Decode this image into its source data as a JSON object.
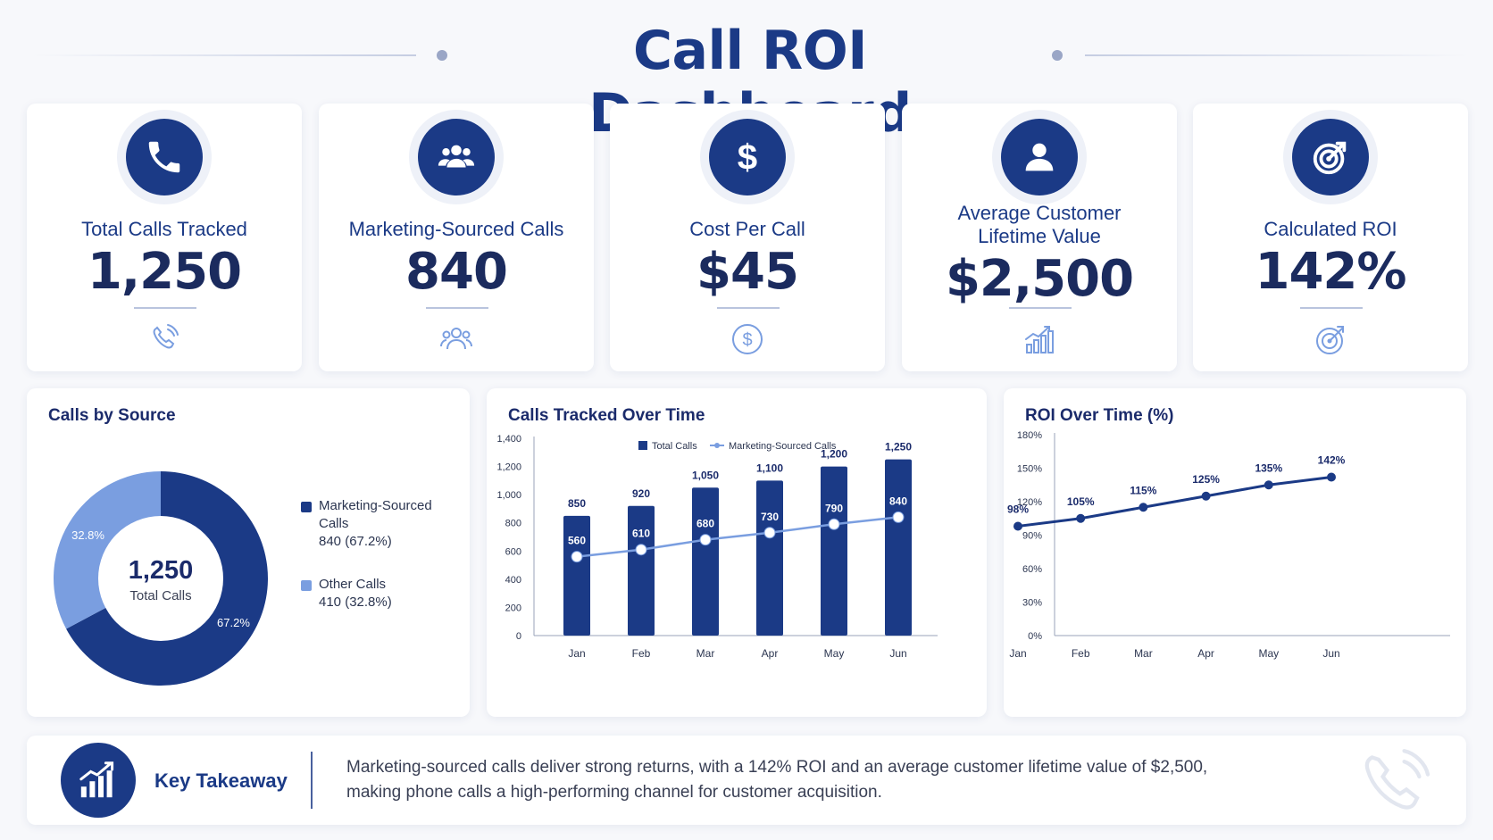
{
  "title": "Call ROI Dashboard",
  "kpis": [
    {
      "label": "Total Calls Tracked",
      "value": "1,250",
      "icon": "phone-icon"
    },
    {
      "label": "Marketing-Sourced Calls",
      "value": "840",
      "icon": "users-icon"
    },
    {
      "label": "Cost Per Call",
      "value": "$45",
      "icon": "dollar-icon"
    },
    {
      "label_line1": "Average Customer",
      "label_line2": "Lifetime Value",
      "value": "$2,500",
      "icon": "user-icon"
    },
    {
      "label": "Calculated ROI",
      "value": "142%",
      "icon": "target-icon"
    }
  ],
  "panels": {
    "source": {
      "title": "Calls by Source"
    },
    "tracked": {
      "title": "Calls Tracked Over Time"
    },
    "roi": {
      "title": "ROI Over Time (%)"
    }
  },
  "colors": {
    "navy": "#1b3a86",
    "light_blue": "#7a9ee0",
    "muted": "#b9c4de"
  },
  "chart_data": [
    {
      "type": "pie",
      "title": "Calls by Source",
      "center_value": "1,250",
      "center_label": "Total Calls",
      "slices": [
        {
          "name_line1": "Marketing-Sourced",
          "name_line2": "Calls",
          "value": 840,
          "percent_label": "67.2%",
          "detail": "840 (67.2%)",
          "color": "#1b3a86"
        },
        {
          "name": "Other Calls",
          "value": 410,
          "percent_label": "32.8%",
          "detail": "410 (32.8%)",
          "color": "#7a9ee0"
        }
      ]
    },
    {
      "type": "bar",
      "title": "Calls Tracked Over Time",
      "categories": [
        "Jan",
        "Feb",
        "Mar",
        "Apr",
        "May",
        "Jun"
      ],
      "ylim": [
        0,
        1400
      ],
      "yticks": [
        0,
        200,
        400,
        600,
        800,
        1000,
        1200,
        1400
      ],
      "ytick_labels": [
        "0",
        "200",
        "400",
        "600",
        "800",
        "1,000",
        "1,200",
        "1,400"
      ],
      "legend_placement": "top",
      "series": [
        {
          "name": "Total Calls",
          "kind": "bar",
          "values": [
            850,
            920,
            1050,
            1100,
            1200,
            1250
          ],
          "labels": [
            "850",
            "920",
            "1,050",
            "1,100",
            "1,200",
            "1,250"
          ],
          "color": "#1b3a86"
        },
        {
          "name": "Marketing-Sourced Calls",
          "kind": "line",
          "values": [
            560,
            610,
            680,
            730,
            790,
            840
          ],
          "labels": [
            "560",
            "610",
            "680",
            "730",
            "790",
            "840"
          ],
          "color": "#7a9ee0"
        }
      ]
    },
    {
      "type": "line",
      "title": "ROI Over Time (%)",
      "categories": [
        "Jan",
        "Feb",
        "Mar",
        "Apr",
        "May",
        "Jun"
      ],
      "ylim": [
        0,
        180
      ],
      "yticks": [
        0,
        30,
        60,
        90,
        120,
        150,
        180
      ],
      "ytick_labels": [
        "0%",
        "30%",
        "60%",
        "90%",
        "120%",
        "150%",
        "180%"
      ],
      "series": [
        {
          "values": [
            98,
            105,
            115,
            125,
            135,
            142
          ],
          "labels": [
            "98%",
            "105%",
            "115%",
            "125%",
            "135%",
            "142%"
          ],
          "color": "#1b3a86"
        }
      ]
    }
  ],
  "takeaway": {
    "title": "Key Takeaway",
    "line1": "Marketing-sourced calls deliver strong returns, with a 142% ROI and an average customer lifetime value of $2,500,",
    "line2": "making phone calls a high-performing channel for customer acquisition."
  }
}
